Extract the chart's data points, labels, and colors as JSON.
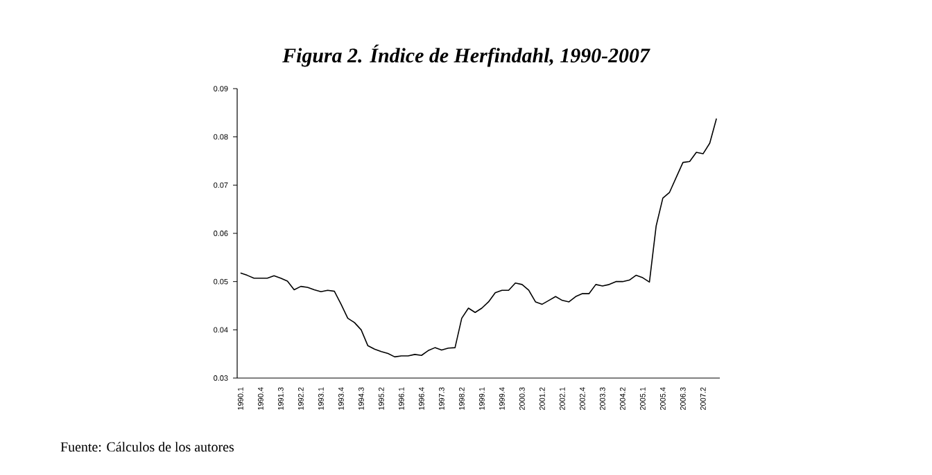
{
  "chart_data": {
    "type": "line",
    "title": "Figura 2. Índice de Herfindahl, 1990-2007",
    "categories": [
      "1990.1",
      null,
      null,
      "1990.4",
      null,
      null,
      "1991.3",
      null,
      null,
      "1992.2",
      null,
      null,
      "1993.1",
      null,
      null,
      "1993.4",
      null,
      null,
      "1994.3",
      null,
      null,
      "1995.2",
      null,
      null,
      "1996.1",
      null,
      null,
      "1996.4",
      null,
      null,
      "1997.3",
      null,
      null,
      "1998.2",
      null,
      null,
      "1999.1",
      null,
      null,
      "1999.4",
      null,
      null,
      "2000.3",
      null,
      null,
      "2001.2",
      null,
      null,
      "2002.1",
      null,
      null,
      "2002.4",
      null,
      null,
      "2003.3",
      null,
      null,
      "2004.2",
      null,
      null,
      "2005.1",
      null,
      null,
      "2005.4",
      null,
      null,
      "2006.3",
      null,
      null,
      "2007.2",
      null,
      null
    ],
    "series": [
      {
        "color": "#000000",
        "values": [
          0.0518,
          0.0513,
          0.0507,
          0.0507,
          0.0507,
          0.0512,
          0.0507,
          0.0501,
          0.0483,
          0.049,
          0.0488,
          0.0483,
          0.0479,
          0.0482,
          0.048,
          0.0453,
          0.0424,
          0.0415,
          0.04,
          0.0367,
          0.036,
          0.0355,
          0.0351,
          0.0344,
          0.0346,
          0.0346,
          0.0349,
          0.0347,
          0.0357,
          0.0363,
          0.0358,
          0.0362,
          0.0363,
          0.0424,
          0.0445,
          0.0436,
          0.0445,
          0.0458,
          0.0477,
          0.0482,
          0.0482,
          0.0497,
          0.0494,
          0.0482,
          0.0458,
          0.0453,
          0.0461,
          0.0469,
          0.0461,
          0.0458,
          0.0469,
          0.0475,
          0.0475,
          0.0494,
          0.0491,
          0.0494,
          0.05,
          0.05,
          0.0503,
          0.0513,
          0.0508,
          0.0499,
          0.0615,
          0.0673,
          0.0685,
          0.0716,
          0.0747,
          0.0749,
          0.0768,
          0.0765,
          0.0787,
          0.0838
        ]
      }
    ],
    "ylim": [
      0.03,
      0.09
    ],
    "yticks": [
      0.03,
      0.04,
      0.05,
      0.06,
      0.07,
      0.08,
      0.09
    ],
    "annotations": [
      "Fuente: Cálculos de los autores"
    ]
  }
}
